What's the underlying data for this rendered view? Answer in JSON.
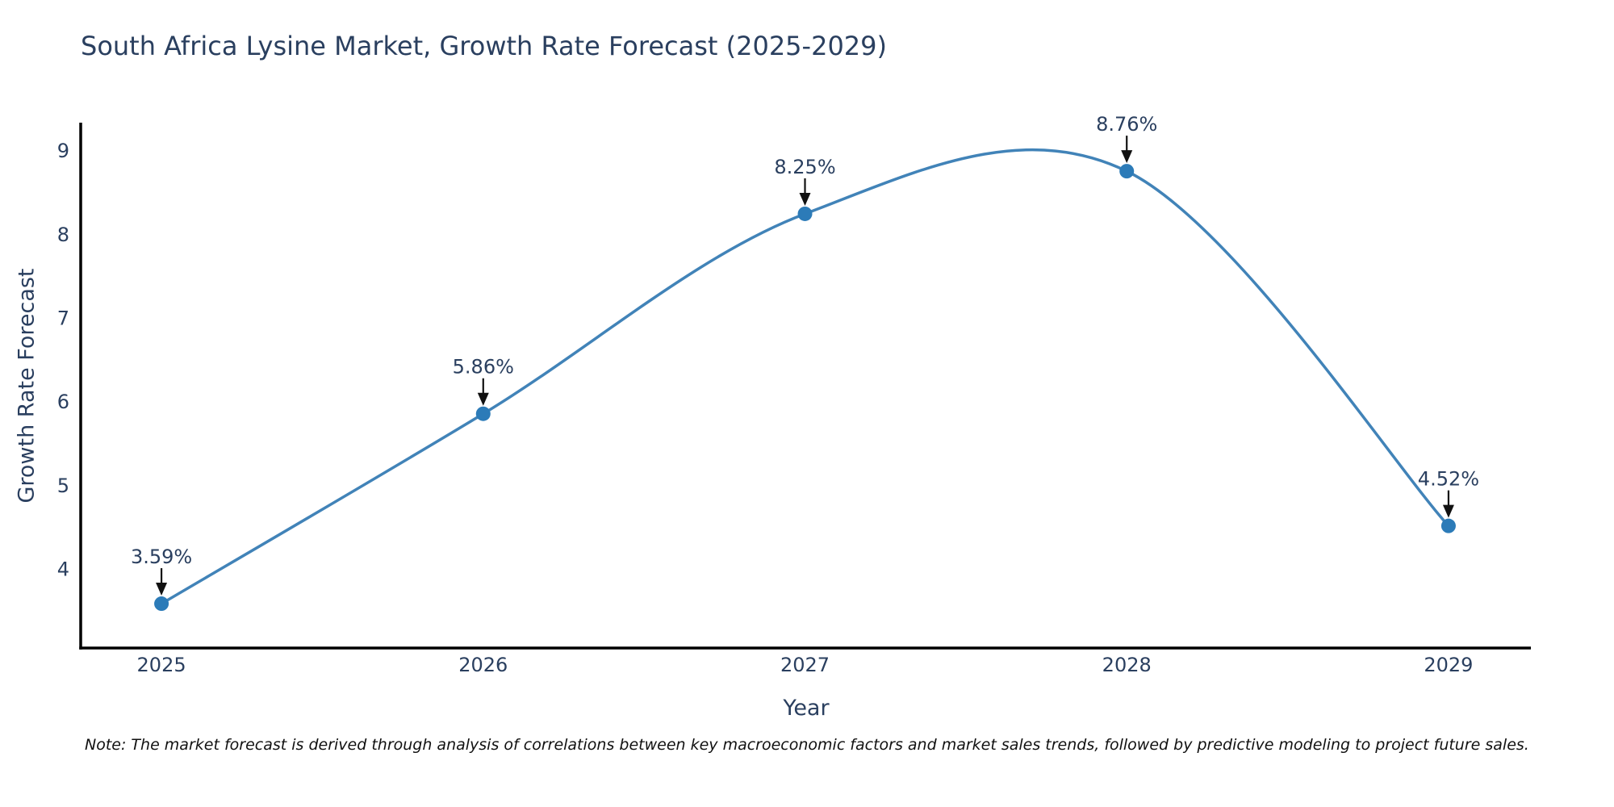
{
  "header": {
    "title": "South Africa Lysine Market, Growth Rate Forecast (2025-2029)"
  },
  "note": "Note: The market forecast is derived through analysis of correlations between key macroeconomic factors and market sales trends, followed by predictive modeling to project future sales.",
  "chart_data": {
    "type": "line",
    "title": "South Africa Lysine Market, Growth Rate Forecast (2025-2029)",
    "xlabel": "Year",
    "ylabel": "Growth Rate Forecast",
    "x": [
      2025,
      2026,
      2027,
      2028,
      2029
    ],
    "values": [
      3.59,
      5.86,
      8.25,
      8.76,
      4.52
    ],
    "point_labels": [
      "3.59%",
      "5.86%",
      "8.25%",
      "8.76%",
      "4.52%"
    ],
    "x_tick_labels": [
      "2025",
      "2026",
      "2027",
      "2028",
      "2029"
    ],
    "y_ticks": [
      4,
      5,
      6,
      7,
      8,
      9
    ],
    "xlim": [
      2024.749,
      2029.256
    ],
    "ylim": [
      3.06,
      9.34
    ],
    "smooth": true,
    "grid": false,
    "legend": "none",
    "colors": {
      "line": "#4183b8",
      "marker": "#2c7bb8",
      "axis": "#000000",
      "tick_label": "#2a3f5f",
      "annotation_text": "#2a3f5f",
      "annotation_arrow": "#111111"
    }
  }
}
